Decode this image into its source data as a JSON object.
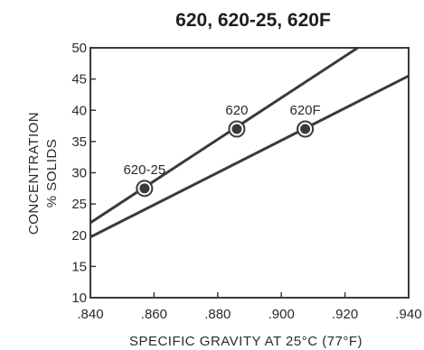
{
  "chart_data": {
    "type": "line",
    "title": "620, 620-25, 620F",
    "xlabel": "SPECIFIC GRAVITY AT 25°C (77°F)",
    "ylabel": [
      "CONCENTRATION",
      "% SOLIDS"
    ],
    "xlim": [
      0.84,
      0.94
    ],
    "ylim": [
      10,
      50
    ],
    "x_ticks": [
      ".840",
      ".860",
      ".880",
      ".900",
      ".920",
      ".940"
    ],
    "x_tick_values": [
      0.84,
      0.86,
      0.88,
      0.9,
      0.92,
      0.94
    ],
    "y_ticks": [
      "10",
      "15",
      "20",
      "25",
      "30",
      "35",
      "40",
      "45",
      "50"
    ],
    "y_tick_values": [
      10,
      15,
      20,
      25,
      30,
      35,
      40,
      45,
      50
    ],
    "grid": false,
    "series": [
      {
        "x": [
          0.84,
          0.924
        ],
        "y": [
          22.0,
          50.0
        ]
      },
      {
        "x": [
          0.84,
          0.94
        ],
        "y": [
          19.7,
          45.5
        ]
      }
    ],
    "points": [
      {
        "label": "620-25",
        "x": 0.857,
        "y": 27.5
      },
      {
        "label": "620",
        "x": 0.886,
        "y": 37.0
      },
      {
        "label": "620F",
        "x": 0.9075,
        "y": 37.0
      }
    ],
    "colors": {
      "line": "#3a3a3a",
      "frame": "#3a3a3a",
      "marker": "#3a3a3a"
    }
  }
}
